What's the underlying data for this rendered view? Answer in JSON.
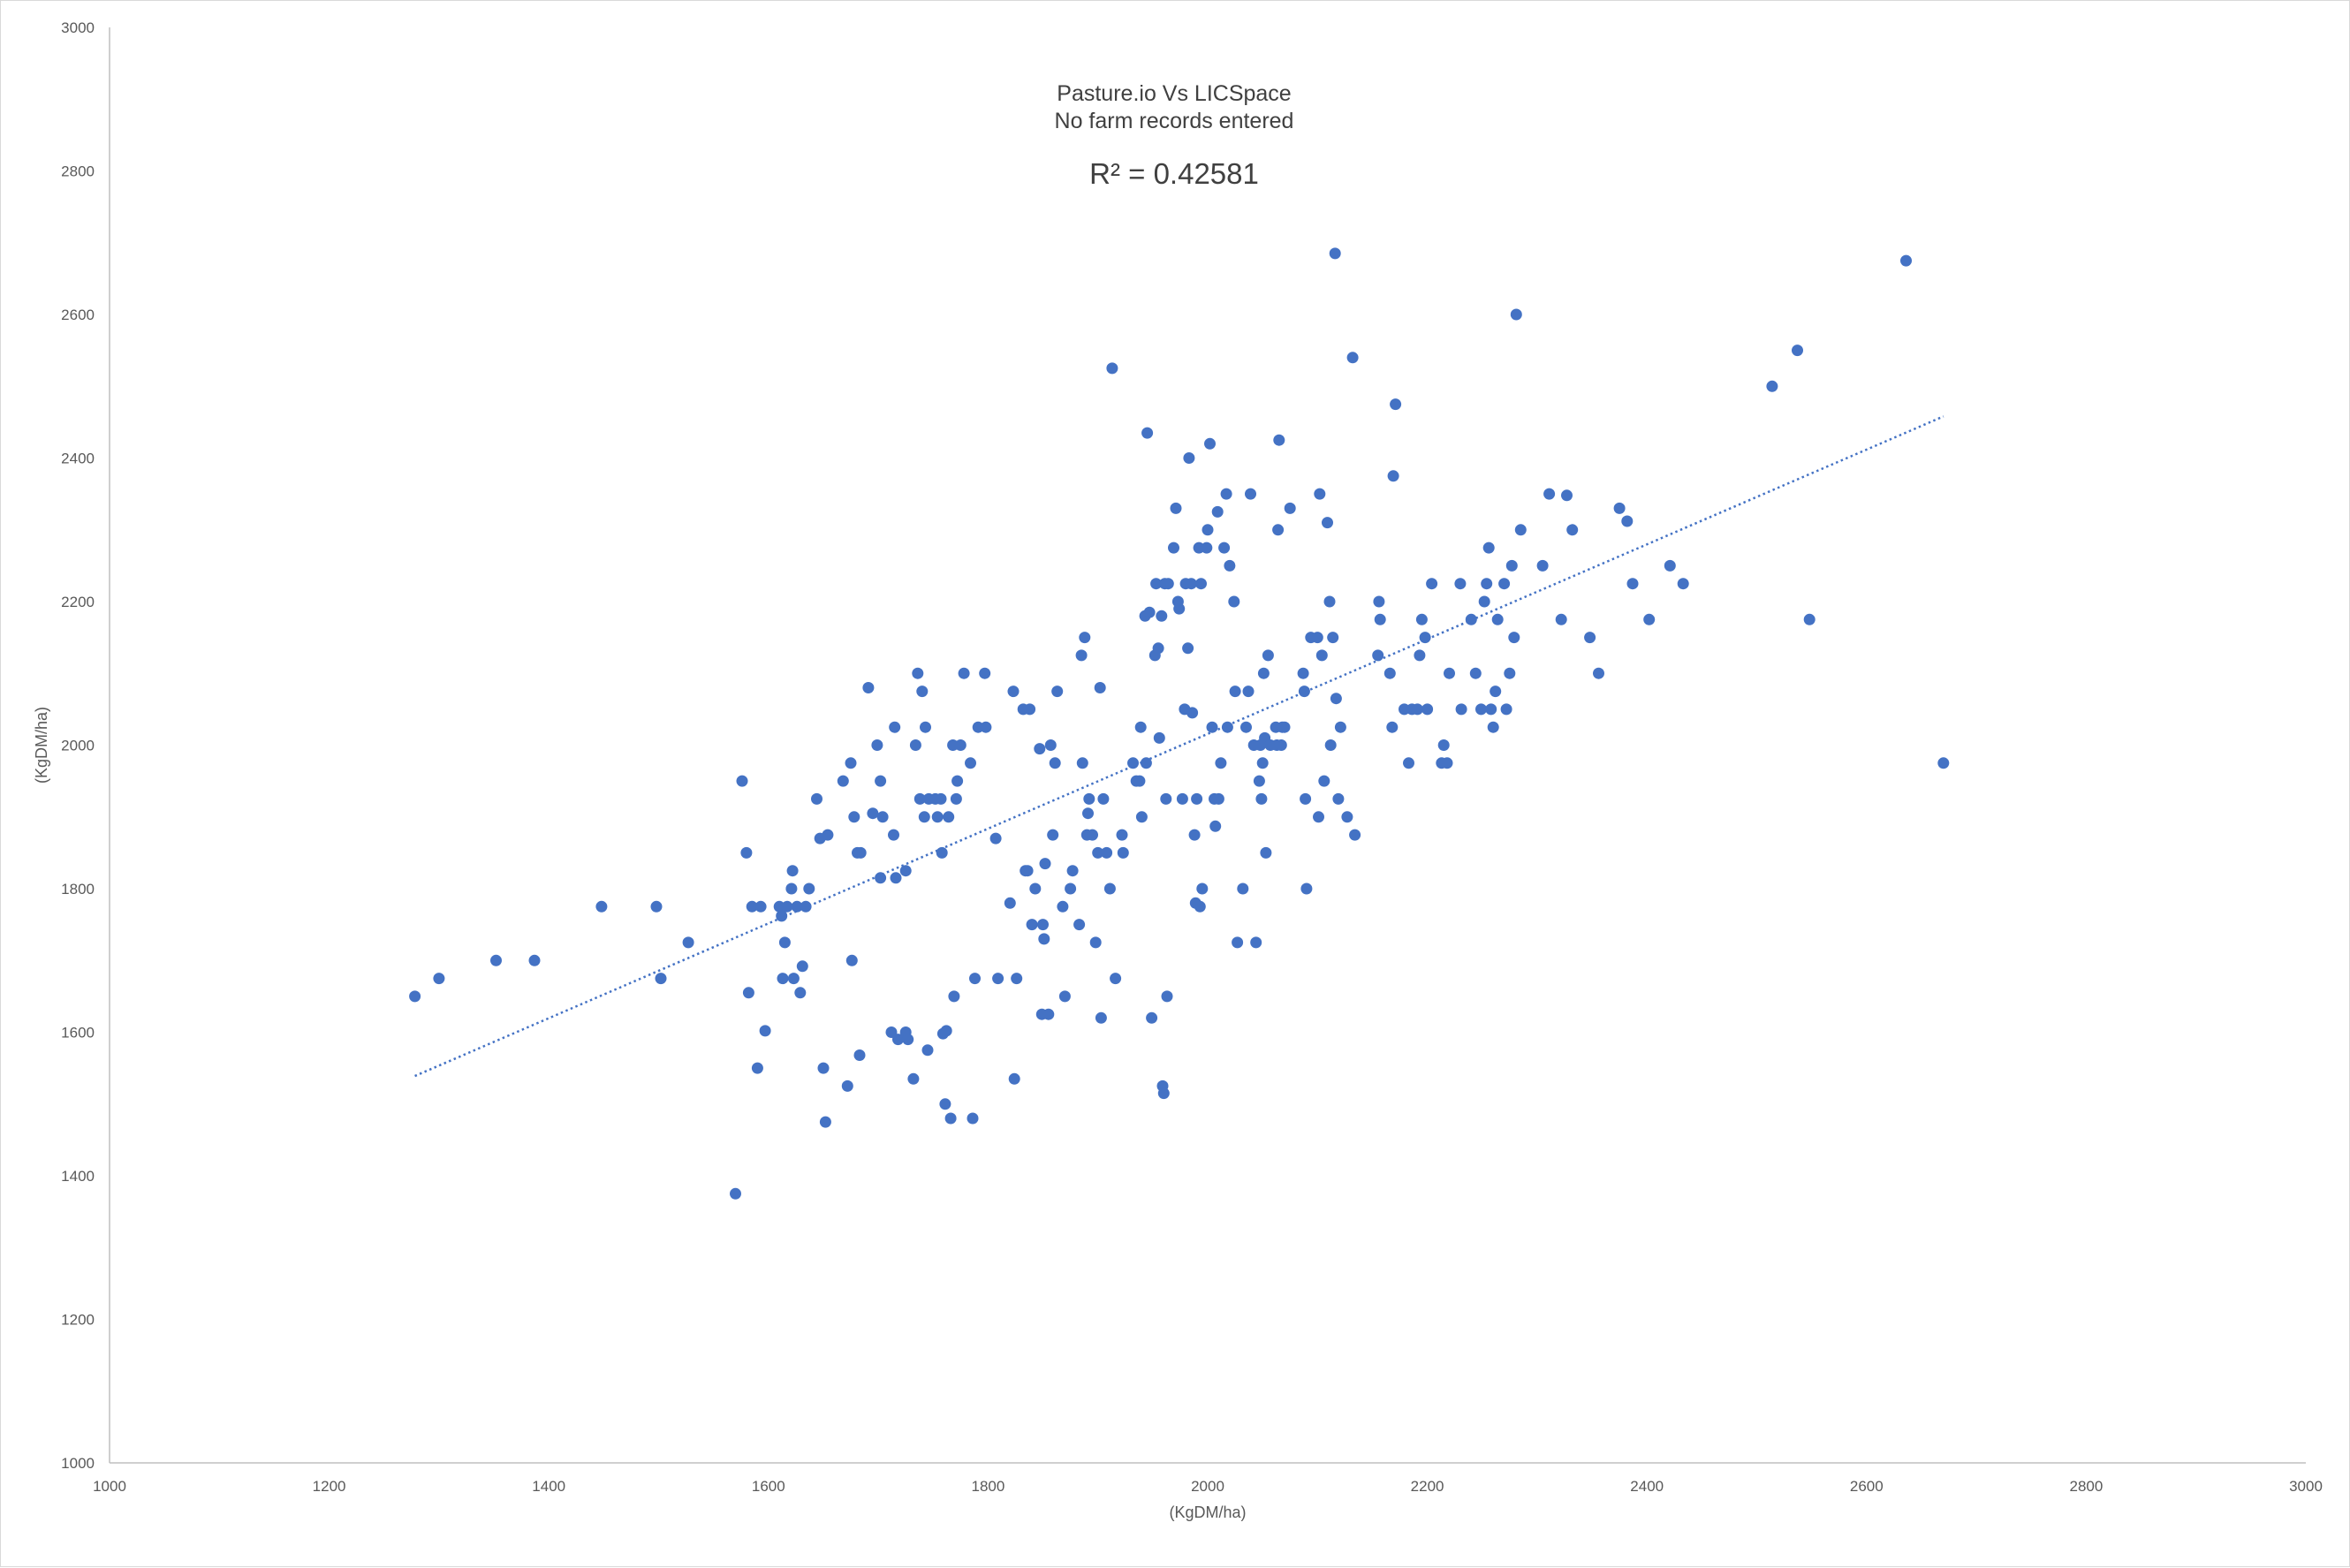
{
  "chart_data": {
    "type": "scatter",
    "title": [
      "Pasture.io  Vs LICSpace",
      "No farm records entered"
    ],
    "annotation": "R² = 0.42581",
    "xlabel": "(KgDM/ha)",
    "ylabel": "(KgDM/ha)",
    "xlim": [
      1000,
      3000
    ],
    "ylim": [
      1000,
      3000
    ],
    "xticks": [
      1000,
      1200,
      1400,
      1600,
      1800,
      2000,
      2200,
      2400,
      2600,
      2800,
      3000
    ],
    "yticks": [
      1000,
      1200,
      1400,
      1600,
      1800,
      2000,
      2200,
      2400,
      2600,
      2800,
      3000
    ],
    "grid": false,
    "legend": "none",
    "marker_color": "#4472c4",
    "trendline": {
      "style": "dotted",
      "color": "#4472c4",
      "x": [
        1278,
        2670
      ],
      "y": [
        1539,
        2458
      ]
    },
    "series": [
      {
        "points": [
          [
            1278,
            1650
          ],
          [
            1300,
            1675
          ],
          [
            1352,
            1700
          ],
          [
            1387,
            1700
          ],
          [
            1448,
            1775
          ],
          [
            1498,
            1775
          ],
          [
            1502,
            1675
          ],
          [
            1527,
            1725
          ],
          [
            1570,
            1375
          ],
          [
            1576,
            1950
          ],
          [
            1580,
            1850
          ],
          [
            1582,
            1655
          ],
          [
            1585,
            1775
          ],
          [
            1590,
            1550
          ],
          [
            1593,
            1775
          ],
          [
            1597,
            1602
          ],
          [
            1610,
            1775
          ],
          [
            1612,
            1762
          ],
          [
            1613,
            1675
          ],
          [
            1615,
            1725
          ],
          [
            1617,
            1775
          ],
          [
            1621,
            1800
          ],
          [
            1622,
            1825
          ],
          [
            1623,
            1675
          ],
          [
            1626,
            1775
          ],
          [
            1629,
            1655
          ],
          [
            1631,
            1692
          ],
          [
            1634,
            1775
          ],
          [
            1637,
            1800
          ],
          [
            1644,
            1925
          ],
          [
            1647,
            1870
          ],
          [
            1650,
            1550
          ],
          [
            1652,
            1475
          ],
          [
            1654,
            1875
          ],
          [
            1668,
            1950
          ],
          [
            1672,
            1525
          ],
          [
            1675,
            1975
          ],
          [
            1676,
            1700
          ],
          [
            1678,
            1900
          ],
          [
            1681,
            1850
          ],
          [
            1683,
            1568
          ],
          [
            1684,
            1850
          ],
          [
            1691,
            2080
          ],
          [
            1695,
            1905
          ],
          [
            1699,
            2000
          ],
          [
            1702,
            1815
          ],
          [
            1702,
            1950
          ],
          [
            1704,
            1900
          ],
          [
            1712,
            1600
          ],
          [
            1714,
            1875
          ],
          [
            1715,
            2025
          ],
          [
            1716,
            1815
          ],
          [
            1718,
            1590
          ],
          [
            1725,
            1600
          ],
          [
            1725,
            1825
          ],
          [
            1727,
            1590
          ],
          [
            1732,
            1535
          ],
          [
            1734,
            2000
          ],
          [
            1736,
            2100
          ],
          [
            1738,
            1925
          ],
          [
            1740,
            2075
          ],
          [
            1742,
            1900
          ],
          [
            1743,
            2025
          ],
          [
            1745,
            1575
          ],
          [
            1746,
            1925
          ],
          [
            1752,
            1925
          ],
          [
            1754,
            1900
          ],
          [
            1757,
            1925
          ],
          [
            1758,
            1850
          ],
          [
            1759,
            1598
          ],
          [
            1761,
            1500
          ],
          [
            1762,
            1602
          ],
          [
            1764,
            1900
          ],
          [
            1766,
            1480
          ],
          [
            1768,
            2000
          ],
          [
            1769,
            1650
          ],
          [
            1771,
            1925
          ],
          [
            1772,
            1950
          ],
          [
            1775,
            2000
          ],
          [
            1778,
            2100
          ],
          [
            1784,
            1975
          ],
          [
            1786,
            1480
          ],
          [
            1788,
            1675
          ],
          [
            1791,
            2025
          ],
          [
            1797,
            2100
          ],
          [
            1798,
            2025
          ],
          [
            1807,
            1870
          ],
          [
            1809,
            1675
          ],
          [
            1820,
            1780
          ],
          [
            1823,
            2075
          ],
          [
            1824,
            1535
          ],
          [
            1826,
            1675
          ],
          [
            1832,
            2050
          ],
          [
            1834,
            1825
          ],
          [
            1836,
            1825
          ],
          [
            1838,
            2050
          ],
          [
            1840,
            1750
          ],
          [
            1843,
            1800
          ],
          [
            1847,
            1995
          ],
          [
            1849,
            1625
          ],
          [
            1850,
            1750
          ],
          [
            1851,
            1730
          ],
          [
            1852,
            1835
          ],
          [
            1855,
            1625
          ],
          [
            1857,
            2000
          ],
          [
            1859,
            1875
          ],
          [
            1861,
            1975
          ],
          [
            1863,
            2075
          ],
          [
            1868,
            1775
          ],
          [
            1870,
            1650
          ],
          [
            1875,
            1800
          ],
          [
            1877,
            1825
          ],
          [
            1883,
            1750
          ],
          [
            1885,
            2125
          ],
          [
            1886,
            1975
          ],
          [
            1888,
            2150
          ],
          [
            1890,
            1875
          ],
          [
            1891,
            1905
          ],
          [
            1892,
            1925
          ],
          [
            1895,
            1875
          ],
          [
            1898,
            1725
          ],
          [
            1900,
            1850
          ],
          [
            1902,
            2080
          ],
          [
            1903,
            1620
          ],
          [
            1905,
            1925
          ],
          [
            1908,
            1850
          ],
          [
            1911,
            1800
          ],
          [
            1913,
            2525
          ],
          [
            1916,
            1675
          ],
          [
            1922,
            1875
          ],
          [
            1923,
            1850
          ],
          [
            1932,
            1975
          ],
          [
            1935,
            1950
          ],
          [
            1938,
            1950
          ],
          [
            1939,
            2025
          ],
          [
            1940,
            1900
          ],
          [
            1943,
            2180
          ],
          [
            1944,
            1975
          ],
          [
            1945,
            2435
          ],
          [
            1947,
            2185
          ],
          [
            1949,
            1620
          ],
          [
            1952,
            2125
          ],
          [
            1953,
            2225
          ],
          [
            1955,
            2135
          ],
          [
            1956,
            2010
          ],
          [
            1958,
            2180
          ],
          [
            1959,
            1525
          ],
          [
            1960,
            1515
          ],
          [
            1961,
            2225
          ],
          [
            1962,
            1925
          ],
          [
            1963,
            1650
          ],
          [
            1964,
            2225
          ],
          [
            1969,
            2275
          ],
          [
            1971,
            2330
          ],
          [
            1973,
            2200
          ],
          [
            1974,
            2190
          ],
          [
            1977,
            1925
          ],
          [
            1979,
            2050
          ],
          [
            1980,
            2225
          ],
          [
            1982,
            2135
          ],
          [
            1983,
            2400
          ],
          [
            1985,
            2225
          ],
          [
            1986,
            2045
          ],
          [
            1988,
            1875
          ],
          [
            1989,
            1780
          ],
          [
            1990,
            1925
          ],
          [
            1992,
            2275
          ],
          [
            1993,
            1775
          ],
          [
            1994,
            2225
          ],
          [
            1995,
            1800
          ],
          [
            1999,
            2275
          ],
          [
            2000,
            2300
          ],
          [
            2002,
            2420
          ],
          [
            2004,
            2025
          ],
          [
            2006,
            1925
          ],
          [
            2007,
            1887
          ],
          [
            2009,
            2325
          ],
          [
            2010,
            1925
          ],
          [
            2012,
            1975
          ],
          [
            2015,
            2275
          ],
          [
            2017,
            2350
          ],
          [
            2018,
            2025
          ],
          [
            2020,
            2250
          ],
          [
            2024,
            2200
          ],
          [
            2025,
            2075
          ],
          [
            2027,
            1725
          ],
          [
            2032,
            1800
          ],
          [
            2035,
            2025
          ],
          [
            2037,
            2075
          ],
          [
            2039,
            2350
          ],
          [
            2042,
            2000
          ],
          [
            2044,
            1725
          ],
          [
            2047,
            1950
          ],
          [
            2048,
            2000
          ],
          [
            2049,
            1925
          ],
          [
            2050,
            1975
          ],
          [
            2051,
            2100
          ],
          [
            2052,
            2010
          ],
          [
            2053,
            1850
          ],
          [
            2055,
            2125
          ],
          [
            2057,
            2000
          ],
          [
            2062,
            2025
          ],
          [
            2063,
            2000
          ],
          [
            2064,
            2300
          ],
          [
            2065,
            2425
          ],
          [
            2067,
            2000
          ],
          [
            2068,
            2025
          ],
          [
            2070,
            2025
          ],
          [
            2075,
            2330
          ],
          [
            2087,
            2100
          ],
          [
            2088,
            2075
          ],
          [
            2089,
            1925
          ],
          [
            2090,
            1800
          ],
          [
            2094,
            2150
          ],
          [
            2100,
            2150
          ],
          [
            2101,
            1900
          ],
          [
            2102,
            2350
          ],
          [
            2104,
            2125
          ],
          [
            2106,
            1950
          ],
          [
            2109,
            2310
          ],
          [
            2111,
            2200
          ],
          [
            2112,
            2000
          ],
          [
            2114,
            2150
          ],
          [
            2116,
            2685
          ],
          [
            2117,
            2065
          ],
          [
            2119,
            1925
          ],
          [
            2121,
            2025
          ],
          [
            2127,
            1900
          ],
          [
            2132,
            2540
          ],
          [
            2134,
            1875
          ],
          [
            2155,
            2125
          ],
          [
            2156,
            2200
          ],
          [
            2157,
            2175
          ],
          [
            2166,
            2100
          ],
          [
            2168,
            2025
          ],
          [
            2169,
            2375
          ],
          [
            2171,
            2475
          ],
          [
            2179,
            2050
          ],
          [
            2183,
            1975
          ],
          [
            2186,
            2050
          ],
          [
            2191,
            2050
          ],
          [
            2193,
            2125
          ],
          [
            2195,
            2175
          ],
          [
            2198,
            2150
          ],
          [
            2200,
            2050
          ],
          [
            2204,
            2225
          ],
          [
            2213,
            1975
          ],
          [
            2215,
            2000
          ],
          [
            2218,
            1975
          ],
          [
            2220,
            2100
          ],
          [
            2230,
            2225
          ],
          [
            2231,
            2050
          ],
          [
            2240,
            2175
          ],
          [
            2244,
            2100
          ],
          [
            2249,
            2050
          ],
          [
            2252,
            2200
          ],
          [
            2254,
            2225
          ],
          [
            2256,
            2275
          ],
          [
            2258,
            2050
          ],
          [
            2260,
            2025
          ],
          [
            2262,
            2075
          ],
          [
            2264,
            2175
          ],
          [
            2270,
            2225
          ],
          [
            2272,
            2050
          ],
          [
            2275,
            2100
          ],
          [
            2277,
            2250
          ],
          [
            2279,
            2150
          ],
          [
            2281,
            2600
          ],
          [
            2285,
            2300
          ],
          [
            2305,
            2250
          ],
          [
            2311,
            2350
          ],
          [
            2322,
            2175
          ],
          [
            2327,
            2348
          ],
          [
            2332,
            2300
          ],
          [
            2348,
            2150
          ],
          [
            2356,
            2100
          ],
          [
            2375,
            2330
          ],
          [
            2382,
            2312
          ],
          [
            2387,
            2225
          ],
          [
            2402,
            2175
          ],
          [
            2421,
            2250
          ],
          [
            2433,
            2225
          ],
          [
            2514,
            2500
          ],
          [
            2537,
            2550
          ],
          [
            2548,
            2175
          ],
          [
            2636,
            2675
          ],
          [
            2670,
            1975
          ]
        ]
      }
    ]
  }
}
